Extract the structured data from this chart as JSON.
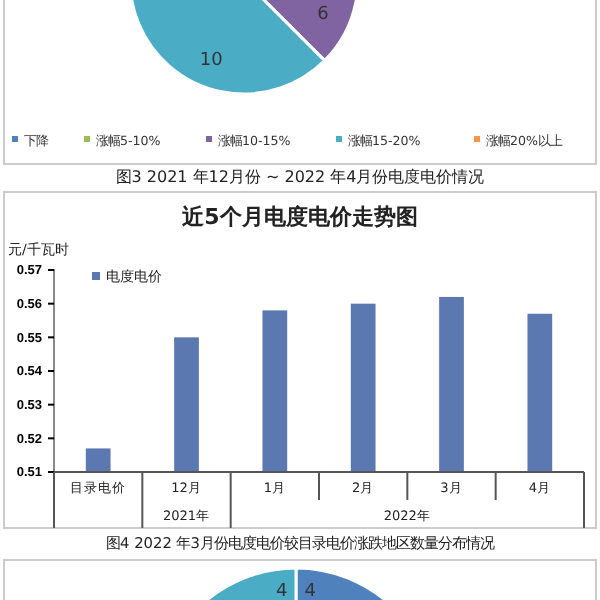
{
  "chart_data": [
    {
      "type": "pie",
      "categories": [
        "下降",
        "涨幅5-10%",
        "涨幅10-15%",
        "涨幅15-20%",
        "涨幅20%以上"
      ],
      "values": [
        null,
        null,
        6,
        10,
        null
      ],
      "colors": [
        "#4f81bd",
        "#9bbb59",
        "#8064a2",
        "#4bacc6",
        "#f79646"
      ],
      "data_labels": true,
      "legend": "bottom",
      "annotations": [
        "图3 2021 年12月份 ~ 2022 年4月份电度电价情况"
      ]
    },
    {
      "type": "bar",
      "title": "近5个月电度电价走势图",
      "ylabel": "元/千瓦时",
      "categories": [
        "目录电价",
        "12月",
        "1月",
        "2月",
        "3月",
        "4月"
      ],
      "series": [
        {
          "name": "电度电价",
          "color": "#5b78b0",
          "values": [
            0.517,
            0.55,
            0.558,
            0.56,
            0.562,
            0.557
          ]
        }
      ],
      "ylim": [
        0.51,
        0.57
      ],
      "yticks": [
        0.51,
        0.52,
        0.53,
        0.54,
        0.55,
        0.56,
        0.57
      ],
      "legend": "top left",
      "annotations": [
        "2021年",
        "2022年",
        "图4 2022 年3月份电度电价较目录电价涨跌地区数量分布情况"
      ]
    },
    {
      "type": "pie",
      "categories": [
        null,
        null
      ],
      "values": [
        4,
        4
      ],
      "colors": [
        "#4f81bd",
        "#4bacc6"
      ],
      "data_labels": true
    }
  ]
}
